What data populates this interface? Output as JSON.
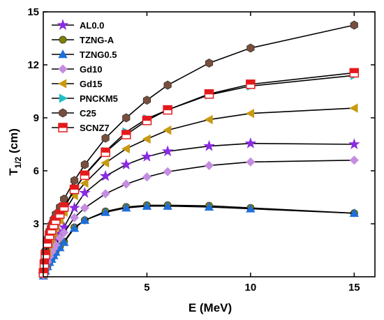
{
  "chart_data": {
    "type": "line",
    "title": "",
    "xlabel": "E (MeV)",
    "ylabel_main": "T",
    "ylabel_sub": "1/2",
    "ylabel_unit": " (cm)",
    "xlim": [
      0,
      16
    ],
    "ylim": [
      0,
      15
    ],
    "xticks": [
      5,
      10,
      15
    ],
    "yticks": [
      3,
      6,
      9,
      12,
      15
    ],
    "grid": false,
    "legend_position": "top-left",
    "series": [
      {
        "name": "AL0.0",
        "marker": "star",
        "color": "#8a2be2",
        "x": [
          0.01,
          0.05,
          0.1,
          0.2,
          0.3,
          0.4,
          0.5,
          0.6,
          0.8,
          1,
          1.5,
          2,
          3,
          4,
          5,
          6,
          8,
          10,
          15
        ],
        "y": [
          0.12,
          0.35,
          0.6,
          1.0,
          1.3,
          1.58,
          1.85,
          2.05,
          2.45,
          2.8,
          3.9,
          4.75,
          5.7,
          6.35,
          6.8,
          7.1,
          7.4,
          7.55,
          7.5
        ]
      },
      {
        "name": "TZNG-A",
        "marker": "circle",
        "color": "#808000",
        "x": [
          0.01,
          0.05,
          0.1,
          0.2,
          0.3,
          0.4,
          0.5,
          0.6,
          0.8,
          1,
          1.5,
          2,
          3,
          4,
          5,
          6,
          8,
          10,
          15
        ],
        "y": [
          0.05,
          0.2,
          0.35,
          0.6,
          0.85,
          1.05,
          1.25,
          1.45,
          1.7,
          2.0,
          2.8,
          3.2,
          3.7,
          3.95,
          4.05,
          4.05,
          4.02,
          3.9,
          3.6
        ]
      },
      {
        "name": "TZNG0.5",
        "marker": "triangle-up",
        "color": "#1e6fd9",
        "x": [
          0.01,
          0.05,
          0.1,
          0.2,
          0.3,
          0.4,
          0.5,
          0.6,
          0.8,
          1,
          1.5,
          2,
          3,
          4,
          5,
          6,
          8,
          10,
          15
        ],
        "y": [
          0.05,
          0.18,
          0.33,
          0.58,
          0.82,
          1.0,
          1.2,
          1.4,
          1.65,
          1.95,
          2.75,
          3.2,
          3.65,
          3.9,
          4.0,
          4.0,
          3.95,
          3.85,
          3.6
        ]
      },
      {
        "name": "Gd10",
        "marker": "diamond",
        "color": "#c48ee0",
        "x": [
          0.01,
          0.05,
          0.1,
          0.2,
          0.3,
          0.4,
          0.5,
          0.6,
          0.8,
          1,
          1.5,
          2,
          3,
          4,
          5,
          6,
          8,
          10,
          15
        ],
        "y": [
          0.1,
          0.3,
          0.5,
          0.85,
          1.15,
          1.4,
          1.6,
          1.8,
          2.2,
          2.5,
          3.35,
          3.9,
          4.7,
          5.25,
          5.65,
          5.95,
          6.3,
          6.5,
          6.6
        ]
      },
      {
        "name": "Gd15",
        "marker": "triangle-left",
        "color": "#c89b12",
        "x": [
          0.01,
          0.05,
          0.1,
          0.2,
          0.3,
          0.4,
          0.5,
          0.6,
          0.8,
          1,
          1.5,
          2,
          3,
          4,
          5,
          6,
          8,
          10,
          15
        ],
        "y": [
          0.15,
          0.5,
          0.85,
          1.4,
          1.85,
          2.2,
          2.5,
          2.8,
          3.2,
          3.65,
          4.6,
          5.3,
          6.45,
          7.25,
          7.8,
          8.3,
          8.9,
          9.25,
          9.55
        ]
      },
      {
        "name": "PNCKM5",
        "marker": "triangle-right",
        "color": "#1ec0c8",
        "x": [
          0.01,
          0.05,
          0.1,
          0.2,
          0.3,
          0.4,
          0.5,
          0.6,
          0.8,
          1,
          1.5,
          2,
          3,
          4,
          5,
          6,
          8,
          10,
          15
        ],
        "y": [
          0.22,
          0.7,
          1.2,
          1.85,
          2.3,
          2.65,
          2.95,
          3.2,
          3.55,
          3.9,
          4.9,
          5.8,
          7.1,
          8.2,
          8.95,
          9.45,
          10.3,
          10.8,
          11.4
        ]
      },
      {
        "name": "C25",
        "marker": "hexagon",
        "color": "#7a4e3c",
        "x": [
          0.01,
          0.05,
          0.1,
          0.2,
          0.3,
          0.4,
          0.5,
          0.6,
          0.8,
          1,
          1.5,
          2,
          3,
          4,
          5,
          6,
          8,
          10,
          15
        ],
        "y": [
          0.3,
          0.9,
          1.45,
          2.15,
          2.6,
          2.95,
          3.25,
          3.55,
          3.95,
          4.4,
          5.45,
          6.35,
          7.85,
          9.0,
          10.0,
          10.85,
          12.1,
          12.95,
          14.25
        ]
      },
      {
        "name": "SCNZ7",
        "marker": "square-half",
        "color": "#e41a1c",
        "x": [
          0.01,
          0.05,
          0.1,
          0.2,
          0.3,
          0.4,
          0.5,
          0.6,
          0.8,
          1,
          1.5,
          2,
          3,
          4,
          5,
          6,
          8,
          10,
          15
        ],
        "y": [
          0.22,
          0.72,
          1.25,
          1.9,
          2.35,
          2.65,
          2.95,
          3.2,
          3.55,
          3.95,
          4.95,
          5.75,
          7.05,
          8.05,
          8.85,
          9.45,
          10.35,
          10.9,
          11.55
        ]
      }
    ]
  }
}
